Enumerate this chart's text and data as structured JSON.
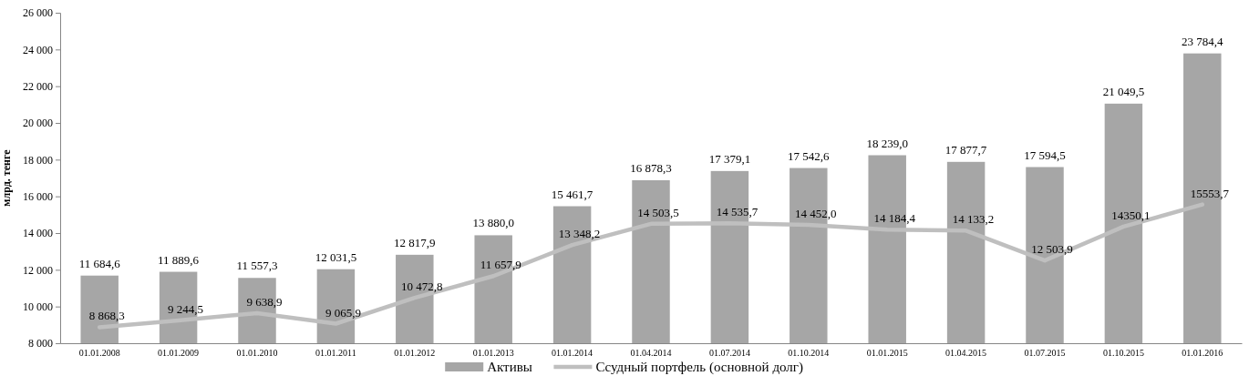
{
  "chart_data": {
    "type": "bar",
    "ylabel": "млрд. тенге",
    "categories": [
      "01.01.2008",
      "01.01.2009",
      "01.01.2010",
      "01.01.2011",
      "01.01.2012",
      "01.01.2013",
      "01.01.2014",
      "01.04.2014",
      "01.07.2014",
      "01.10.2014",
      "01.01.2015",
      "01.04.2015",
      "01.07.2015",
      "01.10.2015",
      "01.01.2016"
    ],
    "series": [
      {
        "name": "Активы",
        "color": "#a6a6a6",
        "values": [
          11684.6,
          11889.6,
          11557.3,
          12031.5,
          12817.9,
          13880.0,
          15461.7,
          16878.3,
          17379.1,
          17542.6,
          18239.0,
          17877.7,
          17594.5,
          21049.5,
          23784.4
        ],
        "value_labels": [
          "11 684,6",
          "11 889,6",
          "11 557,3",
          "12 031,5",
          "12 817,9",
          "13 880,0",
          "15 461,7",
          "16 878,3",
          "17 379,1",
          "17 542,6",
          "18 239,0",
          "17 877,7",
          "17 594,5",
          "21 049,5",
          "23 784,4"
        ]
      },
      {
        "name": "Ссудный портфель (основной долг)",
        "type": "line",
        "color": "#bfbfbf",
        "values": [
          8868.3,
          9244.5,
          9638.9,
          9065.9,
          10472.8,
          11657.9,
          13348.2,
          14503.5,
          14535.7,
          14452.0,
          14184.4,
          14133.2,
          12503.9,
          14350.1,
          15553.7
        ],
        "value_labels": [
          "8 868,3",
          "9 244,5",
          "9 638,9",
          "9 065,9",
          "10 472,8",
          "11 657,9",
          "13 348,2",
          "14 503,5",
          "14 535,7",
          "14 452,0",
          "14 184,4",
          "14 133,2",
          "12 503,9",
          "14350,1",
          "15553,7"
        ]
      }
    ],
    "ylim": [
      8000,
      26000
    ],
    "yticks": [
      {
        "value": 8000,
        "label": "8 000"
      },
      {
        "value": 10000,
        "label": "10 000"
      },
      {
        "value": 12000,
        "label": "12 000"
      },
      {
        "value": 14000,
        "label": "14 000"
      },
      {
        "value": 16000,
        "label": "16 000"
      },
      {
        "value": 18000,
        "label": "18 000"
      },
      {
        "value": 20000,
        "label": "20 000"
      },
      {
        "value": 22000,
        "label": "22 000"
      },
      {
        "value": 24000,
        "label": "24 000"
      },
      {
        "value": 26000,
        "label": "26 000"
      }
    ],
    "grid": false,
    "legend": "bottom",
    "marker": "none",
    "line_style": "solid"
  }
}
